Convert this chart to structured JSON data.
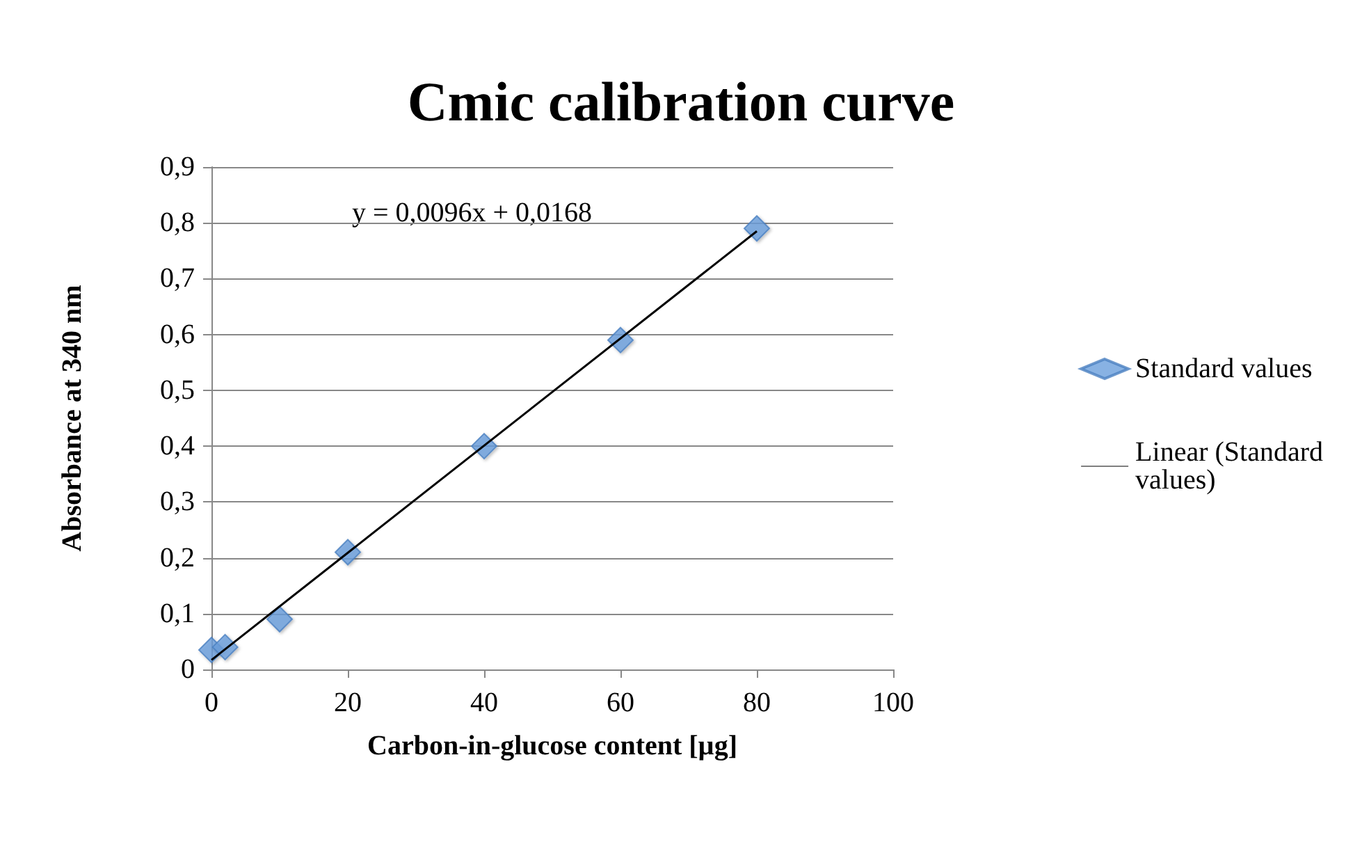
{
  "chart_data": {
    "type": "scatter",
    "title": "Cmic calibration curve",
    "xlabel": "Carbon-in-glucose content [µg]",
    "ylabel": "Absorbance at 340 nm",
    "series": [
      {
        "name": "Standard values",
        "color": "#6a9fdc",
        "x": [
          0,
          2,
          10,
          20,
          40,
          60,
          80
        ],
        "values": [
          0.035,
          0.04,
          0.09,
          0.21,
          0.4,
          0.59,
          0.79
        ],
        "marker": "diamond"
      },
      {
        "name": "Linear (Standard values)",
        "type": "line",
        "color": "#000000",
        "x": [
          0,
          80
        ],
        "values": [
          0.017,
          0.785
        ],
        "marker": "none",
        "line_style": "solid"
      }
    ],
    "annotations": [
      "y = 0,0096x + 0,0168"
    ],
    "xlim": [
      0,
      100
    ],
    "xticks": [
      0,
      20,
      40,
      60,
      80,
      100
    ],
    "ylim": [
      0,
      0.9
    ],
    "yticks": [
      {
        "value": 0,
        "label": "0"
      },
      {
        "value": 0.1,
        "label": "0,1"
      },
      {
        "value": 0.2,
        "label": "0,2"
      },
      {
        "value": 0.3,
        "label": "0,3"
      },
      {
        "value": 0.4,
        "label": "0,4"
      },
      {
        "value": 0.5,
        "label": "0,5"
      },
      {
        "value": 0.6,
        "label": "0,6"
      },
      {
        "value": 0.7,
        "label": "0,7"
      },
      {
        "value": 0.8,
        "label": "0,8"
      },
      {
        "value": 0.9,
        "label": "0,9"
      }
    ],
    "grid": "y",
    "legend": "right"
  }
}
